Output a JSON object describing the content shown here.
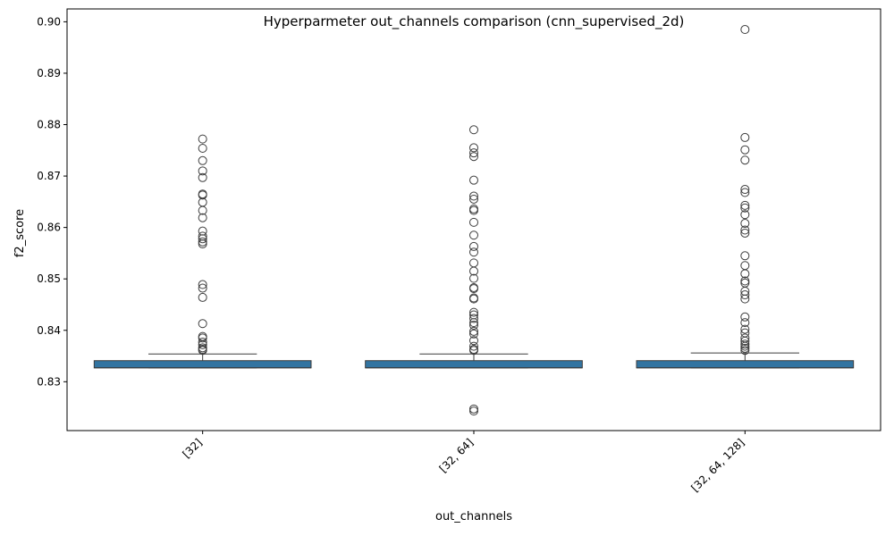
{
  "chart_data": {
    "type": "box",
    "title": "Hyperparmeter out_channels comparison (cnn_supervised_2d)",
    "xlabel": "out_channels",
    "ylabel": "f2_score",
    "ylim": [
      0.8205,
      0.9025
    ],
    "yticks": [
      0.83,
      0.84,
      0.85,
      0.86,
      0.87,
      0.88,
      0.89,
      0.9
    ],
    "ytick_labels": [
      "0.83",
      "0.84",
      "0.85",
      "0.86",
      "0.87",
      "0.88",
      "0.89",
      "0.90"
    ],
    "categories": [
      "[32]",
      "[32, 64]",
      "[32, 64, 128]"
    ],
    "box_color": "#3274a1",
    "grid": false,
    "series": [
      {
        "category": "[32]",
        "whisker_low": 0.8327,
        "q1": 0.8327,
        "median": 0.8327,
        "q3": 0.8341,
        "whisker_high": 0.8354,
        "outliers": [
          0.8772,
          0.8754,
          0.873,
          0.871,
          0.8697,
          0.8665,
          0.8663,
          0.8649,
          0.8633,
          0.8619,
          0.8593,
          0.8583,
          0.8578,
          0.8572,
          0.8568,
          0.8489,
          0.8482,
          0.8464,
          0.8413,
          0.8388,
          0.8385,
          0.8377,
          0.8372,
          0.8366,
          0.8363,
          0.8361
        ]
      },
      {
        "category": "[32, 64]",
        "whisker_low": 0.8327,
        "q1": 0.8327,
        "median": 0.8327,
        "q3": 0.8341,
        "whisker_high": 0.8354,
        "outliers": [
          0.879,
          0.8755,
          0.8745,
          0.8738,
          0.8692,
          0.8661,
          0.8655,
          0.8636,
          0.8633,
          0.861,
          0.8585,
          0.8563,
          0.8552,
          0.8531,
          0.8515,
          0.8501,
          0.8483,
          0.8481,
          0.8463,
          0.8461,
          0.8435,
          0.843,
          0.8423,
          0.8415,
          0.841,
          0.8398,
          0.8393,
          0.838,
          0.8369,
          0.8363,
          0.8361,
          0.8247,
          0.8243
        ]
      },
      {
        "category": "[32, 64, 128]",
        "whisker_low": 0.8327,
        "q1": 0.8327,
        "median": 0.8327,
        "q3": 0.8341,
        "whisker_high": 0.8356,
        "outliers": [
          0.8985,
          0.8775,
          0.8751,
          0.8731,
          0.8674,
          0.8668,
          0.8643,
          0.8638,
          0.8625,
          0.8608,
          0.8595,
          0.8589,
          0.8545,
          0.8526,
          0.851,
          0.8496,
          0.8492,
          0.8476,
          0.8469,
          0.8461,
          0.8426,
          0.8415,
          0.8402,
          0.8395,
          0.8385,
          0.8379,
          0.8373,
          0.8369,
          0.8365,
          0.8361
        ]
      }
    ]
  }
}
